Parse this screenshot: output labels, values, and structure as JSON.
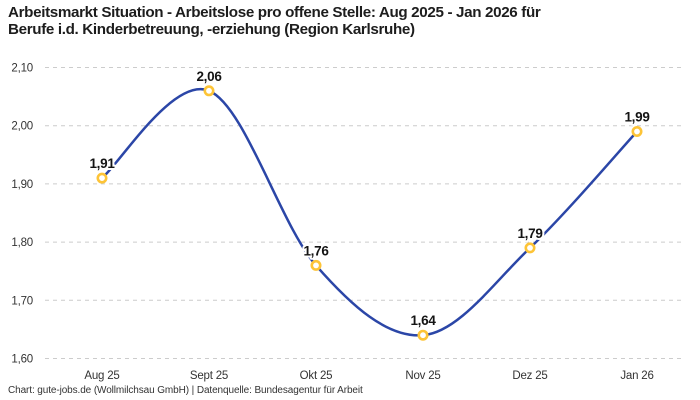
{
  "page": {
    "title_lines": [
      "Arbeitsmarkt Situation - Arbeitslose pro offene Stelle: Aug 2025 - Jan 2026 für",
      "Berufe i.d. Kinderbetreuung, -erziehung (Region Karlsruhe)"
    ],
    "footer": "Chart: gute-jobs.de (Wollmilchsau GmbH) | Datenquelle: Bundesagentur für Arbeit"
  },
  "chart_data": {
    "type": "line",
    "title": "Arbeitsmarkt Situation - Arbeitslose pro offene Stelle: Aug 2025 - Jan 2026 für Berufe i.d. Kinderbetreuung, -erziehung (Region Karlsruhe)",
    "categories": [
      "Aug 25",
      "Sept 25",
      "Okt 25",
      "Nov 25",
      "Dez 25",
      "Jan 26"
    ],
    "values": [
      1.91,
      2.06,
      1.76,
      1.64,
      1.79,
      1.99
    ],
    "point_labels": [
      "1,91",
      "2,06",
      "1,76",
      "1,64",
      "1,79",
      "1,99"
    ],
    "ylim": [
      1.6,
      2.1
    ],
    "yticks": [
      {
        "value": 2.1,
        "label": "2,10"
      },
      {
        "value": 2.0,
        "label": "2,00"
      },
      {
        "value": 1.9,
        "label": "1,90"
      },
      {
        "value": 1.8,
        "label": "1,80"
      },
      {
        "value": 1.7,
        "label": "1,70"
      },
      {
        "value": 1.6,
        "label": "1,60"
      }
    ],
    "grid": "horizontal-dashed",
    "legend": "none",
    "curve": "smooth",
    "colors": {
      "line": "#2b46a7",
      "marker_stroke": "#fdc437",
      "marker_fill": "#ffffff",
      "gridline": "#cccccc",
      "axis_text": "#333333",
      "label_text": "#141414",
      "background": "#ffffff"
    }
  }
}
